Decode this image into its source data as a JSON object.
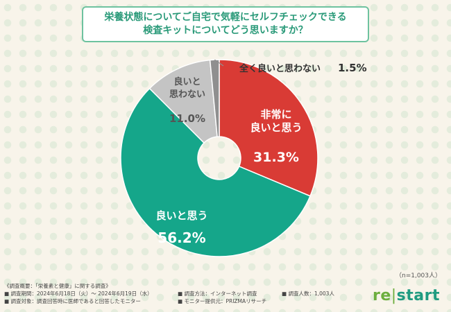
{
  "title": {
    "line1": "栄養状態についてご自宅で気軽にセルフチェックできる",
    "line2": "検査キットについてどう思いますか？"
  },
  "chart_data": {
    "type": "pie",
    "donut": true,
    "slices": [
      {
        "label": "非常に良いと思う",
        "label_lines": [
          "非常に",
          "良いと思う"
        ],
        "value": 31.3,
        "display": "31.3%",
        "color": "#d93b35",
        "text_color": "#ffffff"
      },
      {
        "label": "良いと思う",
        "label_lines": [
          "良いと思う"
        ],
        "value": 56.2,
        "display": "56.2%",
        "color": "#15a68a",
        "text_color": "#ffffff"
      },
      {
        "label": "良いと思わない",
        "label_lines": [
          "良いと",
          "思わない"
        ],
        "value": 11.0,
        "display": "11.0%",
        "color": "#c4c4c4",
        "text_color": "#555555"
      },
      {
        "label": "全く良いと思わない",
        "label_lines": [
          "全く良いと思わない"
        ],
        "value": 1.5,
        "display": "1.5%",
        "color": "#8f8f8f",
        "text_color": "#333333"
      }
    ]
  },
  "n_note": "（n=1,003人）",
  "footer": {
    "header": "《調査概要：「栄養素と健康」に関する調査》",
    "period": "■ 調査期間：2024年6月18日（火）〜 2024年6月19日（水）",
    "method": "■ 調査方法：インターネット調査",
    "count": "■ 調査人数：1,003人",
    "target": "■ 調査対象：調査回答時に医師であると回答したモニター",
    "provider": "■ モニター提供元：PRIZMAリサーチ"
  },
  "logo": {
    "re": "re",
    "bar": "|",
    "start": "start"
  }
}
